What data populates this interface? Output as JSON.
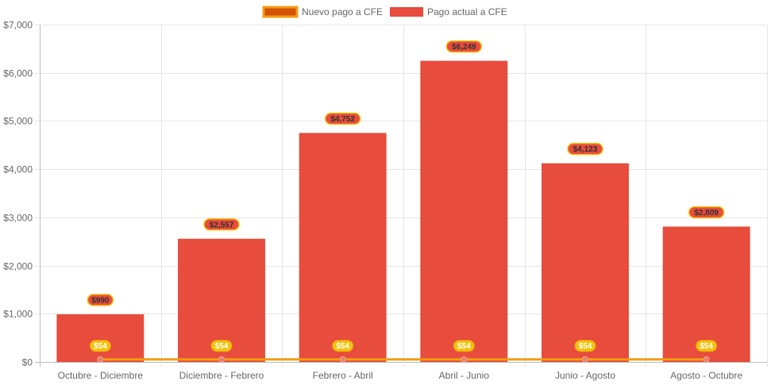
{
  "chart_data": {
    "type": "bar",
    "categories": [
      "Octubre - Diciembre",
      "Diciembre - Febrero",
      "Febrero - Abril",
      "Abril - Junio",
      "Junio - Agosto",
      "Agosto - Octubre"
    ],
    "series": [
      {
        "name": "Nuevo pago a CFE",
        "type": "line",
        "values": [
          54,
          54,
          54,
          54,
          54,
          54
        ],
        "labels": [
          "$54",
          "$54",
          "$54",
          "$54",
          "$54",
          "$54"
        ],
        "color": "#d35400",
        "border_color": "#f39c12"
      },
      {
        "name": "Pago actual a CFE",
        "type": "bar",
        "values": [
          990,
          2557,
          4752,
          6249,
          4123,
          2809
        ],
        "labels": [
          "$990",
          "$2,557",
          "$4,752",
          "$6,249",
          "$4,123",
          "$2,809"
        ],
        "color": "#e74c3c"
      }
    ],
    "y_ticks": [
      "$0",
      "$1,000",
      "$2,000",
      "$3,000",
      "$4,000",
      "$5,000",
      "$6,000",
      "$7,000"
    ],
    "ylim": [
      0,
      7000
    ],
    "legend_position": "top",
    "grid": true
  }
}
